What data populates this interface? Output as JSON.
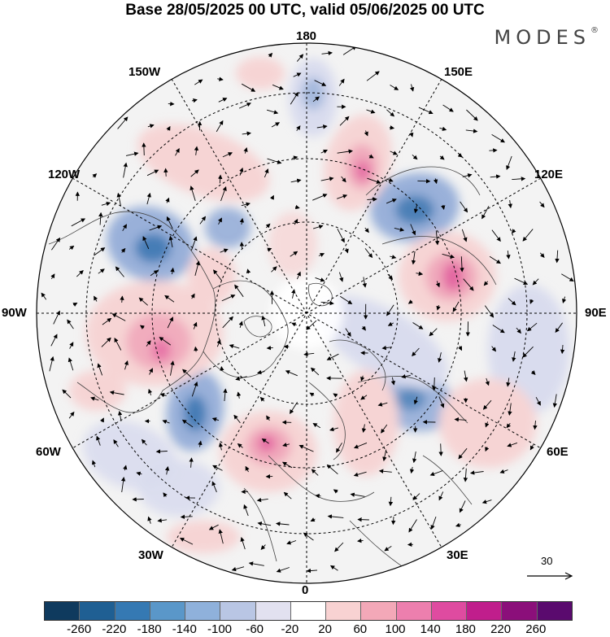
{
  "header": {
    "title": "Base 28/05/2025 00 UTC, valid 05/06/2025 00 UTC",
    "brand": "MODES",
    "brand_mark": "®"
  },
  "map": {
    "projection": "north-polar-stereographic",
    "longitude_labels": {
      "top": "180",
      "top_left": "150W",
      "top_right": "150E",
      "upper_left": "120W",
      "upper_right": "120E",
      "left": "90W",
      "right": "90E",
      "lower_left": "60W",
      "lower_right": "60E",
      "bottom_left": "30W",
      "bottom_right": "30E",
      "bottom": "0"
    },
    "reference_vector": "30",
    "anomaly_colors": {
      "negative_strong": "#3e78b2",
      "negative_mid": "#8fa9d6",
      "negative_weak": "#d9dcee",
      "positive_weak": "#f6d4d4",
      "positive_mid": "#f0a4b8",
      "positive_strong": "#e25c9e"
    }
  },
  "colorbar": {
    "colors": [
      "#0f3a5e",
      "#1f5f93",
      "#3579b3",
      "#5a97c9",
      "#8fb1db",
      "#b9c6e4",
      "#e2e1f0",
      "#ffffff",
      "#f8d2d2",
      "#f3a8b8",
      "#ed7fae",
      "#df4ba0",
      "#c01e8c",
      "#8b0f7a",
      "#5a0a6e"
    ],
    "ticks": [
      "-260",
      "-220",
      "-180",
      "-140",
      "-100",
      "-60",
      "-20",
      "20",
      "60",
      "100",
      "140",
      "180",
      "220",
      "260"
    ]
  }
}
